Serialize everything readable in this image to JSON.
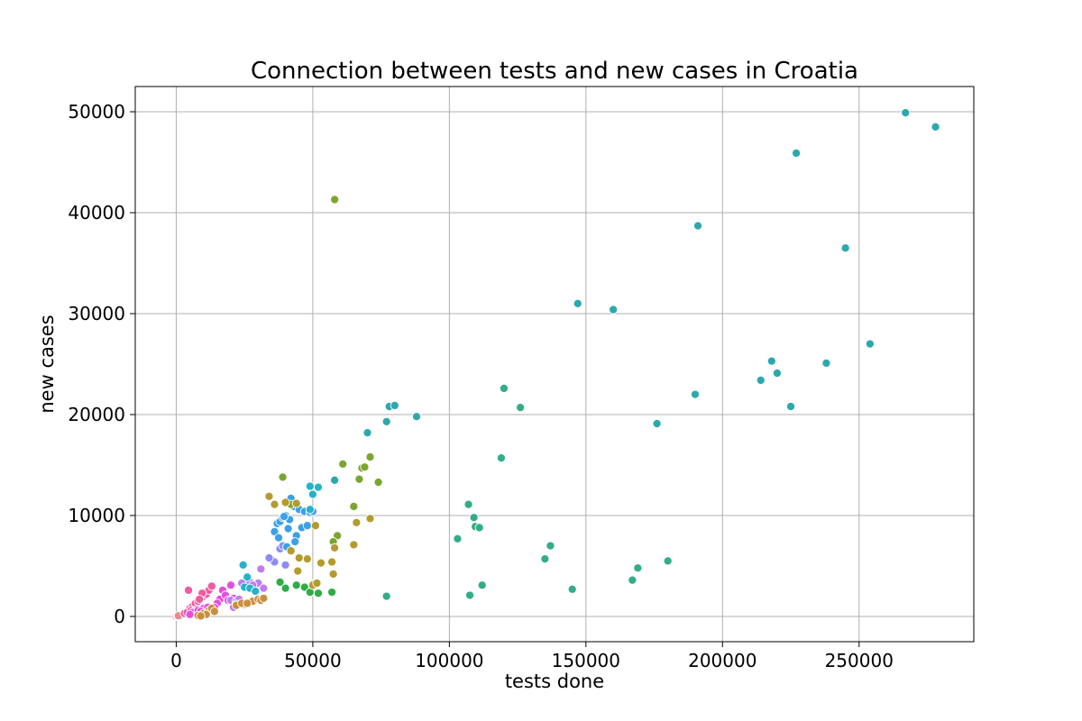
{
  "chart_data": {
    "type": "scatter",
    "title": "Connection between tests and new cases in Croatia",
    "xlabel": "tests done",
    "ylabel": "new cases",
    "xlim": [
      -15000,
      292000
    ],
    "ylim": [
      -2500,
      52500
    ],
    "xticks": [
      0,
      50000,
      100000,
      150000,
      200000,
      250000
    ],
    "yticks": [
      0,
      10000,
      20000,
      30000,
      40000,
      50000
    ],
    "xtick_labels": [
      "0",
      "50000",
      "100000",
      "150000",
      "200000",
      "250000"
    ],
    "ytick_labels": [
      "0",
      "10000",
      "20000",
      "30000",
      "40000",
      "50000"
    ],
    "grid": true,
    "groups": [
      {
        "color": "#e58b8b",
        "points": [
          [
            0,
            0
          ],
          [
            500,
            50
          ],
          [
            1000,
            100
          ],
          [
            1500,
            80
          ],
          [
            2000,
            150
          ],
          [
            2500,
            200
          ],
          [
            1200,
            30
          ],
          [
            800,
            70
          ]
        ]
      },
      {
        "color": "#ef5aa0",
        "points": [
          [
            4500,
            2600
          ],
          [
            3000,
            300
          ],
          [
            5000,
            800
          ],
          [
            6000,
            1000
          ],
          [
            7000,
            1300
          ],
          [
            8000,
            1500
          ],
          [
            9000,
            1800
          ],
          [
            10000,
            2000
          ],
          [
            11000,
            2200
          ],
          [
            12000,
            2600
          ],
          [
            13000,
            3000
          ],
          [
            4000,
            400
          ],
          [
            5500,
            600
          ],
          [
            7500,
            700
          ],
          [
            9500,
            2300
          ],
          [
            6500,
            500
          ],
          [
            8500,
            1700
          ]
        ]
      },
      {
        "color": "#e64ee0",
        "points": [
          [
            16000,
            1700
          ],
          [
            17000,
            2600
          ],
          [
            18000,
            2100
          ],
          [
            19000,
            1600
          ],
          [
            20000,
            3100
          ],
          [
            15000,
            1300
          ],
          [
            14000,
            900
          ],
          [
            21000,
            1800
          ],
          [
            6000,
            400
          ],
          [
            8000,
            600
          ],
          [
            10000,
            800
          ],
          [
            11500,
            900
          ],
          [
            9000,
            500
          ],
          [
            5000,
            200
          ]
        ]
      },
      {
        "color": "#c07cf2",
        "points": [
          [
            20000,
            1600
          ],
          [
            22000,
            1500
          ],
          [
            23000,
            1700
          ],
          [
            24000,
            3300
          ],
          [
            25000,
            1200
          ],
          [
            27000,
            3400
          ],
          [
            29000,
            2700
          ],
          [
            30000,
            3300
          ],
          [
            31000,
            4700
          ],
          [
            32000,
            2800
          ],
          [
            21000,
            900
          ],
          [
            26000,
            1300
          ],
          [
            28000,
            3100
          ]
        ]
      },
      {
        "color": "#8d8cf5",
        "points": [
          [
            35000,
            5600
          ],
          [
            36000,
            5400
          ],
          [
            38000,
            6700
          ],
          [
            39000,
            7000
          ],
          [
            40000,
            5100
          ],
          [
            34000,
            5800
          ]
        ]
      },
      {
        "color": "#3aa1e8",
        "points": [
          [
            36000,
            8400
          ],
          [
            37000,
            9200
          ],
          [
            38000,
            9400
          ],
          [
            39000,
            9800
          ],
          [
            40000,
            10000
          ],
          [
            41000,
            8700
          ],
          [
            42000,
            11700
          ],
          [
            43000,
            10900
          ],
          [
            44000,
            8000
          ],
          [
            45000,
            10600
          ],
          [
            46000,
            8800
          ],
          [
            47000,
            10400
          ],
          [
            48000,
            9000
          ],
          [
            49000,
            10300
          ],
          [
            50000,
            10400
          ],
          [
            37500,
            7800
          ],
          [
            41500,
            9600
          ],
          [
            43500,
            7400
          ],
          [
            40500,
            6900
          ],
          [
            39500,
            9900
          ]
        ]
      },
      {
        "color": "#24b3cc",
        "points": [
          [
            24500,
            5100
          ],
          [
            25000,
            2900
          ],
          [
            26000,
            3900
          ],
          [
            27000,
            2800
          ],
          [
            29000,
            2500
          ],
          [
            22000,
            1200
          ],
          [
            49000,
            12900
          ],
          [
            50000,
            12100
          ],
          [
            52000,
            12800
          ],
          [
            49000,
            10600
          ]
        ]
      },
      {
        "color": "#2ba9ad",
        "points": [
          [
            58000,
            13500
          ],
          [
            70000,
            18200
          ],
          [
            77000,
            19300
          ],
          [
            78000,
            20800
          ],
          [
            80000,
            20900
          ],
          [
            88000,
            19800
          ],
          [
            147000,
            31000
          ],
          [
            160000,
            30400
          ],
          [
            176000,
            19100
          ],
          [
            190000,
            22000
          ],
          [
            191000,
            38700
          ],
          [
            214000,
            23400
          ],
          [
            218000,
            25300
          ],
          [
            220000,
            24100
          ],
          [
            225000,
            20800
          ],
          [
            227000,
            45900
          ],
          [
            238000,
            25100
          ],
          [
            245000,
            36500
          ],
          [
            254000,
            27000
          ],
          [
            267000,
            49900
          ],
          [
            278000,
            48500
          ]
        ]
      },
      {
        "color": "#31ad88",
        "points": [
          [
            77000,
            2000
          ],
          [
            103000,
            7700
          ],
          [
            107000,
            11100
          ],
          [
            107500,
            2100
          ],
          [
            109000,
            9800
          ],
          [
            109500,
            8900
          ],
          [
            111000,
            8800
          ],
          [
            112000,
            3100
          ],
          [
            119000,
            15700
          ],
          [
            120000,
            22600
          ],
          [
            126000,
            20700
          ],
          [
            135000,
            5700
          ],
          [
            137000,
            7000
          ],
          [
            145000,
            2700
          ],
          [
            167000,
            3600
          ],
          [
            169000,
            4800
          ],
          [
            180000,
            5500
          ]
        ]
      },
      {
        "color": "#2fac47",
        "points": [
          [
            38000,
            3400
          ],
          [
            40000,
            2800
          ],
          [
            47000,
            2900
          ],
          [
            49000,
            2400
          ],
          [
            52000,
            2300
          ],
          [
            57000,
            2400
          ],
          [
            50000,
            3200
          ],
          [
            44000,
            3100
          ]
        ]
      },
      {
        "color": "#7aa62e",
        "points": [
          [
            39000,
            13800
          ],
          [
            58000,
            41300
          ],
          [
            59000,
            8000
          ],
          [
            61000,
            15100
          ],
          [
            65000,
            10900
          ],
          [
            67000,
            13600
          ],
          [
            68000,
            14700
          ],
          [
            69000,
            14800
          ],
          [
            71000,
            15800
          ],
          [
            74000,
            13300
          ],
          [
            57500,
            7400
          ],
          [
            42000,
            11100
          ]
        ]
      },
      {
        "color": "#b49b2e",
        "points": [
          [
            34000,
            11900
          ],
          [
            36000,
            11100
          ],
          [
            40000,
            11300
          ],
          [
            42000,
            6500
          ],
          [
            44000,
            11200
          ],
          [
            45000,
            5800
          ],
          [
            48000,
            5700
          ],
          [
            50000,
            3100
          ],
          [
            51000,
            9000
          ],
          [
            53000,
            5300
          ],
          [
            57000,
            5400
          ],
          [
            57500,
            4200
          ],
          [
            58000,
            6800
          ],
          [
            65000,
            7100
          ],
          [
            66000,
            9300
          ],
          [
            71000,
            9700
          ],
          [
            44500,
            4500
          ],
          [
            51500,
            3300
          ]
        ]
      },
      {
        "color": "#c98f3d",
        "points": [
          [
            22000,
            1100
          ],
          [
            24000,
            1300
          ],
          [
            28000,
            1500
          ],
          [
            30000,
            1700
          ],
          [
            31000,
            1600
          ],
          [
            32000,
            1800
          ],
          [
            26000,
            1300
          ],
          [
            12000,
            600
          ],
          [
            10000,
            300
          ],
          [
            8000,
            100
          ],
          [
            13000,
            800
          ],
          [
            11000,
            200
          ],
          [
            9000,
            50
          ],
          [
            14000,
            500
          ]
        ]
      }
    ]
  }
}
